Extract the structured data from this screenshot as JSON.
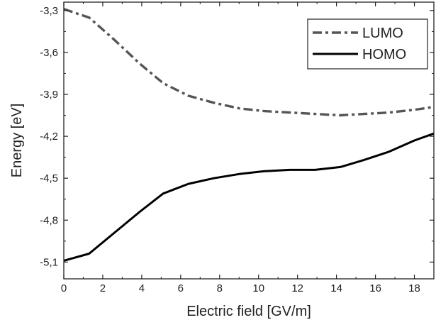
{
  "chart_data": {
    "type": "line",
    "xlabel": "Electric field [GV/m]",
    "ylabel": "Energy [eV]",
    "xlim": [
      0,
      19
    ],
    "ylim": [
      -5.22,
      -3.24
    ],
    "x_ticks": [
      0,
      2,
      4,
      6,
      8,
      10,
      12,
      14,
      16,
      18
    ],
    "x_tick_labels": [
      "0",
      "2",
      "4",
      "6",
      "8",
      "10",
      "12",
      "14",
      "16",
      "18"
    ],
    "y_ticks": [
      -3.3,
      -3.6,
      -3.9,
      -4.2,
      -4.5,
      -4.8,
      -5.1
    ],
    "y_tick_labels": [
      "-3,3",
      "-3,6",
      "-3,9",
      "-4,2",
      "-4,5",
      "-4,8",
      "-5,1"
    ],
    "grid": false,
    "legend_position": "top-right",
    "series": [
      {
        "name": "LUMO",
        "style": "dash-dot",
        "color": "#555555",
        "x": [
          0,
          1.3,
          2.6,
          3.9,
          5.1,
          6.4,
          7.7,
          9.0,
          10.3,
          11.6,
          12.9,
          14.2,
          15.4,
          16.7,
          18.0,
          19.0
        ],
        "y": [
          -3.29,
          -3.35,
          -3.51,
          -3.68,
          -3.82,
          -3.91,
          -3.96,
          -4.0,
          -4.02,
          -4.03,
          -4.04,
          -4.05,
          -4.04,
          -4.03,
          -4.01,
          -3.99
        ]
      },
      {
        "name": "HOMO",
        "style": "solid",
        "color": "#000000",
        "x": [
          0,
          1.3,
          2.6,
          3.9,
          5.1,
          6.4,
          7.7,
          9.0,
          10.3,
          11.6,
          12.9,
          14.2,
          15.4,
          16.7,
          18.0,
          19.0
        ],
        "y": [
          -5.09,
          -5.04,
          -4.89,
          -4.74,
          -4.61,
          -4.54,
          -4.5,
          -4.47,
          -4.45,
          -4.44,
          -4.44,
          -4.42,
          -4.37,
          -4.31,
          -4.23,
          -4.18
        ]
      }
    ]
  }
}
